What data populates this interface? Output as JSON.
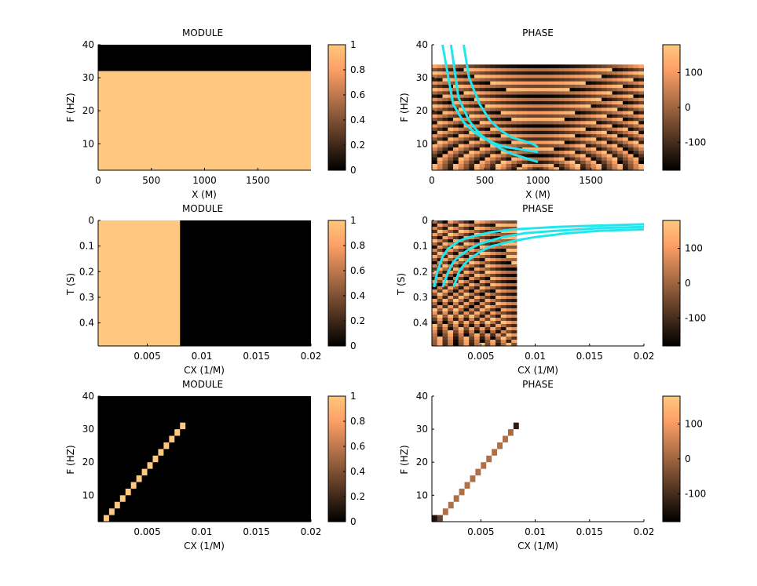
{
  "palette": {
    "copper_low": "#000000",
    "copper_high": "#ffc77f",
    "curve_color": "#22e6ee",
    "axis_color": "#000000",
    "background": "#ffffff"
  },
  "chart_data": [
    {
      "id": "p1",
      "type": "heatmap",
      "title": "MODULE",
      "xlabel": "X (M)",
      "ylabel": "F (HZ)",
      "xlim": [
        0,
        2000
      ],
      "ylim": [
        2,
        40
      ],
      "y_reversed": false,
      "xticks": [
        0,
        500,
        1000,
        1500
      ],
      "xtick_labels": [
        "0",
        "500",
        "1000",
        "1500"
      ],
      "yticks": [
        10,
        20,
        30,
        40
      ],
      "ytick_labels": [
        "10",
        "20",
        "30",
        "40"
      ],
      "pattern": "band",
      "band_axis": "y",
      "band_edge": 32,
      "value_below": 1,
      "value_above": 0,
      "colorbar": {
        "range": [
          0,
          1
        ],
        "ticks": [
          0,
          0.2,
          0.4,
          0.6,
          0.8,
          1
        ],
        "tick_labels": [
          "0",
          "0.2",
          "0.4",
          "0.6",
          "0.8",
          "1"
        ]
      }
    },
    {
      "id": "p2",
      "type": "heatmap",
      "title": "PHASE",
      "xlabel": "X (M)",
      "ylabel": "F (HZ)",
      "xlim": [
        0,
        2000
      ],
      "ylim": [
        2,
        40
      ],
      "y_reversed": false,
      "xticks": [
        0,
        500,
        1000,
        1500
      ],
      "xtick_labels": [
        "0",
        "500",
        "1000",
        "1500"
      ],
      "yticks": [
        10,
        20,
        30,
        40
      ],
      "ytick_labels": [
        "10",
        "20",
        "30",
        "40"
      ],
      "pattern": "phase_rings",
      "data_extent": {
        "x": [
          0,
          2000
        ],
        "y": [
          2,
          34
        ]
      },
      "grid": {
        "nx": 40,
        "ny": 32
      },
      "ring_center": {
        "x": 1000,
        "y": 2
      },
      "ring_scale": [
        400,
        4.5
      ],
      "curves": [
        {
          "x": [
            100,
            200,
            300,
            400,
            500,
            600,
            700,
            800,
            900,
            1000
          ],
          "y": [
            40,
            22,
            16.5,
            13.5,
            11.5,
            10,
            9,
            8.5,
            8,
            7.5
          ]
        },
        {
          "x": [
            180,
            250,
            350,
            450,
            550,
            650,
            750,
            850,
            950,
            1000
          ],
          "y": [
            40,
            24,
            17,
            13,
            10.5,
            8.5,
            7,
            6,
            5,
            4.5
          ]
        },
        {
          "x": [
            300,
            350,
            450,
            550,
            650,
            750,
            850,
            950,
            1000
          ],
          "y": [
            40,
            30,
            22,
            17,
            14,
            12,
            11,
            10,
            9
          ]
        }
      ],
      "colorbar": {
        "range": [
          -180,
          180
        ],
        "ticks": [
          -100,
          0,
          100
        ],
        "tick_labels": [
          "-100",
          "0",
          "100"
        ]
      }
    },
    {
      "id": "p3",
      "type": "heatmap",
      "title": "MODULE",
      "xlabel": "CX (1/M)",
      "ylabel": "T (S)",
      "xlim": [
        0.0005,
        0.02
      ],
      "ylim": [
        0,
        0.49
      ],
      "y_reversed": true,
      "xticks": [
        0.005,
        0.01,
        0.015,
        0.02
      ],
      "xtick_labels": [
        "0.005",
        "0.01",
        "0.015",
        "0.02"
      ],
      "yticks": [
        0,
        0.1,
        0.2,
        0.3,
        0.4
      ],
      "ytick_labels": [
        "0",
        "0.1",
        "0.2",
        "0.3",
        "0.4"
      ],
      "pattern": "band",
      "band_axis": "x",
      "band_edge": 0.008,
      "value_below": 1,
      "value_above": 0,
      "colorbar": {
        "range": [
          0,
          1
        ],
        "ticks": [
          0,
          0.2,
          0.4,
          0.6,
          0.8,
          1
        ],
        "tick_labels": [
          "0",
          "0.2",
          "0.4",
          "0.6",
          "0.8",
          "1"
        ]
      }
    },
    {
      "id": "p4",
      "type": "heatmap",
      "title": "PHASE",
      "xlabel": "CX (1/M)",
      "ylabel": "T (S)",
      "xlim": [
        0.0005,
        0.02
      ],
      "ylim": [
        0,
        0.49
      ],
      "y_reversed": true,
      "xticks": [
        0.005,
        0.01,
        0.015,
        0.02
      ],
      "xtick_labels": [
        "0.005",
        "0.01",
        "0.015",
        "0.02"
      ],
      "yticks": [
        0,
        0.1,
        0.2,
        0.3,
        0.4
      ],
      "ytick_labels": [
        "0",
        "0.1",
        "0.2",
        "0.3",
        "0.4"
      ],
      "pattern": "phase_rings",
      "data_extent": {
        "x": [
          0.0005,
          0.0083
        ],
        "y": [
          0,
          0.49
        ]
      },
      "grid": {
        "nx": 16,
        "ny": 40
      },
      "ring_center": {
        "x": 0.0083,
        "y": 0.49
      },
      "ring_scale": [
        0.0016,
        0.05
      ],
      "curves": [
        {
          "x": [
            0.0007,
            0.001,
            0.0015,
            0.002,
            0.003,
            0.004,
            0.006,
            0.008,
            0.012,
            0.016,
            0.02
          ],
          "y": [
            0.26,
            0.2,
            0.14,
            0.11,
            0.08,
            0.065,
            0.045,
            0.035,
            0.025,
            0.02,
            0.015
          ]
        },
        {
          "x": [
            0.0015,
            0.002,
            0.0025,
            0.003,
            0.004,
            0.005,
            0.007,
            0.009,
            0.012,
            0.016,
            0.02
          ],
          "y": [
            0.26,
            0.2,
            0.16,
            0.14,
            0.11,
            0.09,
            0.065,
            0.05,
            0.04,
            0.03,
            0.025
          ]
        },
        {
          "x": [
            0.0025,
            0.003,
            0.0035,
            0.004,
            0.005,
            0.006,
            0.008,
            0.01,
            0.013,
            0.016,
            0.02
          ],
          "y": [
            0.26,
            0.2,
            0.17,
            0.15,
            0.12,
            0.1,
            0.08,
            0.065,
            0.05,
            0.04,
            0.035
          ]
        }
      ],
      "colorbar": {
        "range": [
          -180,
          180
        ],
        "ticks": [
          -100,
          0,
          100
        ],
        "tick_labels": [
          "-100",
          "0",
          "100"
        ]
      }
    },
    {
      "id": "p5",
      "type": "heatmap",
      "title": "MODULE",
      "xlabel": "CX (1/M)",
      "ylabel": "F (HZ)",
      "xlim": [
        0.0005,
        0.02
      ],
      "ylim": [
        2,
        40
      ],
      "y_reversed": false,
      "xticks": [
        0.005,
        0.01,
        0.015,
        0.02
      ],
      "xtick_labels": [
        "0.005",
        "0.01",
        "0.015",
        "0.02"
      ],
      "yticks": [
        10,
        20,
        30,
        40
      ],
      "ytick_labels": [
        "10",
        "20",
        "30",
        "40"
      ],
      "pattern": "diagonal",
      "background_value": 0,
      "cells": [
        {
          "x": 0.0005,
          "y": 2,
          "v": 1
        },
        {
          "x": 0.001,
          "y": 4,
          "v": 1
        },
        {
          "x": 0.0015,
          "y": 6,
          "v": 1
        },
        {
          "x": 0.002,
          "y": 8,
          "v": 1
        },
        {
          "x": 0.0025,
          "y": 10,
          "v": 1
        },
        {
          "x": 0.003,
          "y": 12,
          "v": 1
        },
        {
          "x": 0.0035,
          "y": 14,
          "v": 1
        },
        {
          "x": 0.004,
          "y": 16,
          "v": 1
        },
        {
          "x": 0.0045,
          "y": 18,
          "v": 1
        },
        {
          "x": 0.005,
          "y": 20,
          "v": 1
        },
        {
          "x": 0.0055,
          "y": 22,
          "v": 1
        },
        {
          "x": 0.006,
          "y": 24,
          "v": 1
        },
        {
          "x": 0.0065,
          "y": 26,
          "v": 1
        },
        {
          "x": 0.007,
          "y": 28,
          "v": 1
        },
        {
          "x": 0.0075,
          "y": 30,
          "v": 1
        },
        {
          "x": 0.008,
          "y": 32,
          "v": 1
        }
      ],
      "colorbar": {
        "range": [
          0,
          1
        ],
        "ticks": [
          0,
          0.2,
          0.4,
          0.6,
          0.8,
          1
        ],
        "tick_labels": [
          "0",
          "0.2",
          "0.4",
          "0.6",
          "0.8",
          "1"
        ]
      }
    },
    {
      "id": "p6",
      "type": "heatmap",
      "title": "PHASE",
      "xlabel": "CX (1/M)",
      "ylabel": "F (HZ)",
      "xlim": [
        0.0005,
        0.02
      ],
      "ylim": [
        2,
        40
      ],
      "y_reversed": false,
      "xticks": [
        0.005,
        0.01,
        0.015,
        0.02
      ],
      "xtick_labels": [
        "0.005",
        "0.01",
        "0.015",
        "0.02"
      ],
      "yticks": [
        10,
        20,
        30,
        40
      ],
      "ytick_labels": [
        "10",
        "20",
        "30",
        "40"
      ],
      "pattern": "diagonal",
      "background_value": null,
      "cells": [
        {
          "x": 0.0005,
          "y": 2,
          "v": -120
        },
        {
          "x": 0.001,
          "y": 2,
          "v": -40
        },
        {
          "x": 0.0005,
          "y": 4,
          "v": -150
        },
        {
          "x": 0.001,
          "y": 4,
          "v": -60
        },
        {
          "x": 0.0015,
          "y": 6,
          "v": 20
        },
        {
          "x": 0.002,
          "y": 8,
          "v": 20
        },
        {
          "x": 0.0025,
          "y": 10,
          "v": 20
        },
        {
          "x": 0.003,
          "y": 12,
          "v": 20
        },
        {
          "x": 0.0035,
          "y": 14,
          "v": 20
        },
        {
          "x": 0.004,
          "y": 16,
          "v": 20
        },
        {
          "x": 0.0045,
          "y": 18,
          "v": 20
        },
        {
          "x": 0.005,
          "y": 20,
          "v": 20
        },
        {
          "x": 0.0055,
          "y": 22,
          "v": 20
        },
        {
          "x": 0.006,
          "y": 24,
          "v": 20
        },
        {
          "x": 0.0065,
          "y": 26,
          "v": 20
        },
        {
          "x": 0.007,
          "y": 28,
          "v": 20
        },
        {
          "x": 0.0075,
          "y": 30,
          "v": 10
        },
        {
          "x": 0.008,
          "y": 32,
          "v": -130
        }
      ],
      "colorbar": {
        "range": [
          -180,
          180
        ],
        "ticks": [
          -100,
          0,
          100
        ],
        "tick_labels": [
          "-100",
          "0",
          "100"
        ]
      }
    }
  ]
}
